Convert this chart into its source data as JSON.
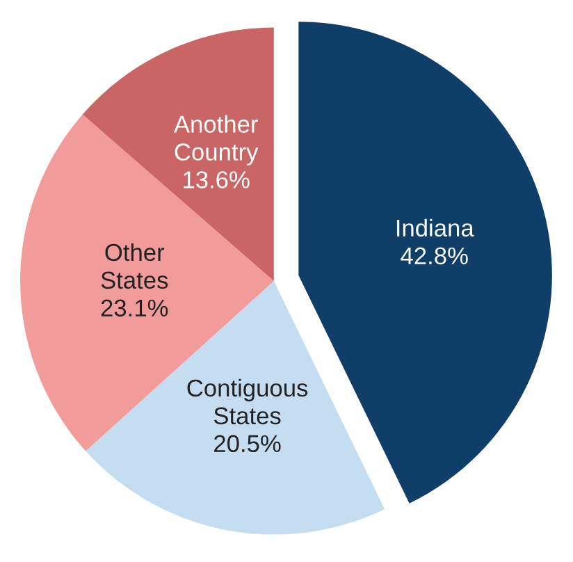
{
  "chart_data": {
    "type": "pie",
    "categories": [
      "Indiana",
      "Contiguous States",
      "Other States",
      "Another Country"
    ],
    "values": [
      42.8,
      20.5,
      23.1,
      13.6
    ],
    "colors": [
      "#0f3f69",
      "#c5ddf0",
      "#f29b9b",
      "#c96565"
    ],
    "value_labels": [
      "42.8%",
      "20.5%",
      "23.1%",
      "13.6%"
    ]
  }
}
